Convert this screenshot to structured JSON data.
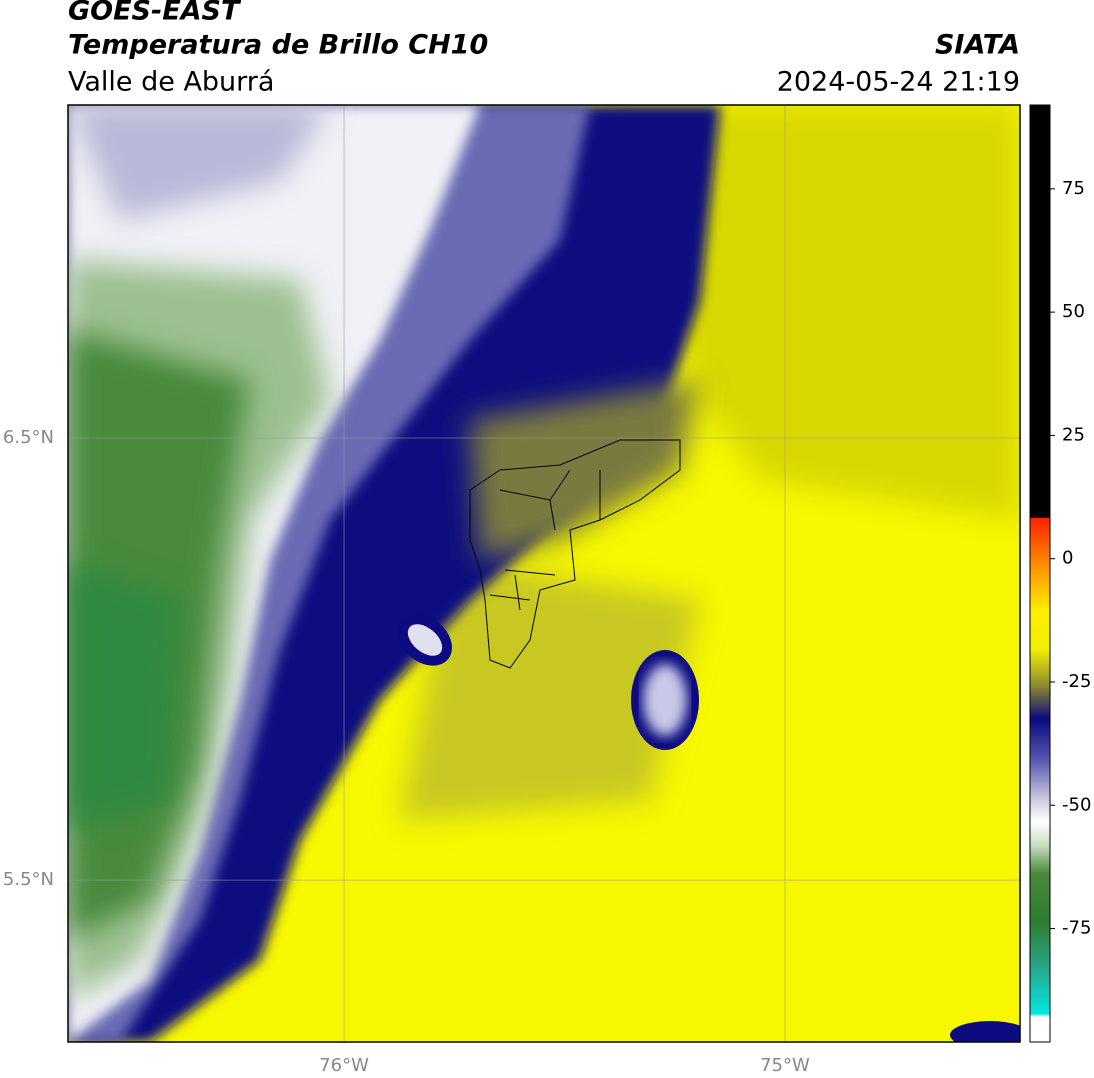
{
  "header": {
    "satellite": "GOES-EAST",
    "product": "Temperatura de Brillo CH10",
    "region": "Valle de Aburrá",
    "agency": "SIATA",
    "timestamp": "2024-05-24 21:19"
  },
  "map": {
    "xlim": [
      -76.626,
      -74.467
    ],
    "ylim": [
      5.134,
      7.253
    ],
    "xticks": [
      {
        "value": -76,
        "label": "76°W"
      },
      {
        "value": -75,
        "label": "75°W"
      }
    ],
    "yticks": [
      {
        "value": 6.5,
        "label": "6.5°N"
      },
      {
        "value": 5.5,
        "label": "5.5°N"
      }
    ],
    "grid": true
  },
  "colorbar": {
    "lim": [
      -98,
      92
    ],
    "ticks": [
      75,
      50,
      25,
      0,
      -25,
      -50,
      -75
    ]
  }
}
